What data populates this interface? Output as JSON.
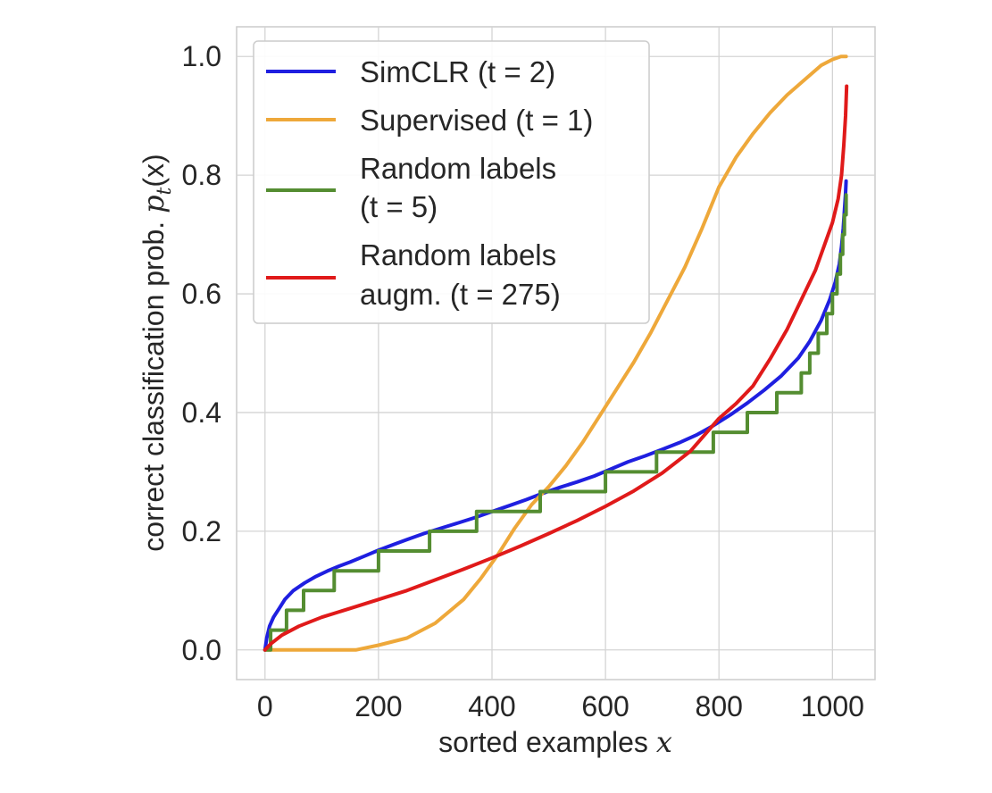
{
  "chart_data": {
    "type": "line",
    "xlabel": "sorted examples",
    "xlabel_var": "x",
    "ylabel": "correct classification prob.",
    "ylabel_func": "p",
    "ylabel_sub": "t",
    "ylabel_arg": "(x)",
    "xlim": [
      -50,
      1075
    ],
    "ylim": [
      -0.05,
      1.05
    ],
    "xticks": [
      0,
      200,
      400,
      600,
      800,
      1000
    ],
    "xtick_labels": [
      "0",
      "200",
      "400",
      "600",
      "800",
      "1000"
    ],
    "yticks": [
      0.0,
      0.2,
      0.4,
      0.6,
      0.8,
      1.0
    ],
    "ytick_labels": [
      "0.0",
      "0.2",
      "0.4",
      "0.6",
      "0.8",
      "1.0"
    ],
    "grid": true,
    "legend_position": "top-left",
    "series": [
      {
        "name": "SimCLR",
        "t_label": "(t = 2)",
        "color": "#1f1fe0",
        "step": false,
        "x": [
          0,
          3,
          8,
          15,
          25,
          35,
          50,
          70,
          90,
          110,
          130,
          150,
          175,
          200,
          225,
          250,
          280,
          310,
          340,
          370,
          400,
          430,
          460,
          490,
          520,
          550,
          580,
          610,
          640,
          670,
          700,
          730,
          760,
          790,
          820,
          850,
          880,
          910,
          940,
          960,
          980,
          995,
          1005,
          1012,
          1016,
          1019,
          1021,
          1023,
          1024
        ],
        "y": [
          0.0,
          0.02,
          0.04,
          0.055,
          0.07,
          0.085,
          0.1,
          0.113,
          0.124,
          0.133,
          0.141,
          0.148,
          0.158,
          0.168,
          0.177,
          0.186,
          0.196,
          0.205,
          0.214,
          0.223,
          0.233,
          0.243,
          0.253,
          0.264,
          0.274,
          0.283,
          0.293,
          0.305,
          0.317,
          0.327,
          0.338,
          0.349,
          0.362,
          0.378,
          0.396,
          0.416,
          0.438,
          0.462,
          0.492,
          0.52,
          0.555,
          0.59,
          0.62,
          0.65,
          0.68,
          0.71,
          0.74,
          0.77,
          0.79
        ]
      },
      {
        "name": "Supervised",
        "t_label": "(t = 1)",
        "color": "#eea83a",
        "step": false,
        "x": [
          0,
          50,
          100,
          160,
          200,
          250,
          300,
          350,
          380,
          410,
          440,
          470,
          500,
          530,
          560,
          590,
          620,
          650,
          680,
          710,
          740,
          770,
          800,
          830,
          860,
          890,
          920,
          950,
          980,
          1000,
          1015,
          1024
        ],
        "y": [
          0.0,
          0.0,
          0.0,
          0.0,
          0.008,
          0.02,
          0.045,
          0.085,
          0.12,
          0.16,
          0.205,
          0.245,
          0.275,
          0.31,
          0.35,
          0.395,
          0.44,
          0.485,
          0.535,
          0.59,
          0.645,
          0.71,
          0.78,
          0.83,
          0.87,
          0.905,
          0.935,
          0.96,
          0.985,
          0.995,
          1.0,
          1.0
        ]
      },
      {
        "name": "Random labels",
        "t_label": "(t = 5)",
        "color": "#548d31",
        "step": true,
        "x": [
          0,
          10,
          38,
          68,
          122,
          200,
          290,
          373,
          485,
          600,
          690,
          790,
          850,
          902,
          945,
          960,
          975,
          990,
          1000,
          1008,
          1014,
          1018,
          1021,
          1024
        ],
        "y": [
          0.0,
          0.0333,
          0.0667,
          0.1,
          0.1333,
          0.1667,
          0.2,
          0.2333,
          0.2667,
          0.3,
          0.3333,
          0.3667,
          0.4,
          0.4333,
          0.4667,
          0.5,
          0.5333,
          0.5667,
          0.6,
          0.6333,
          0.6667,
          0.7,
          0.7333,
          0.7667
        ]
      },
      {
        "name": "Random labels augm.",
        "t_label": "(t = 275)",
        "color": "#e01a1a",
        "step": false,
        "x": [
          0,
          10,
          30,
          60,
          100,
          150,
          200,
          250,
          300,
          350,
          400,
          450,
          500,
          550,
          600,
          650,
          700,
          750,
          800,
          830,
          860,
          890,
          920,
          950,
          970,
          985,
          1000,
          1010,
          1016,
          1020,
          1023,
          1025
        ],
        "y": [
          0.0,
          0.01,
          0.025,
          0.04,
          0.055,
          0.07,
          0.085,
          0.1,
          0.118,
          0.136,
          0.155,
          0.175,
          0.196,
          0.218,
          0.242,
          0.268,
          0.298,
          0.335,
          0.39,
          0.415,
          0.445,
          0.49,
          0.54,
          0.6,
          0.64,
          0.68,
          0.72,
          0.76,
          0.8,
          0.85,
          0.9,
          0.95
        ]
      }
    ]
  }
}
